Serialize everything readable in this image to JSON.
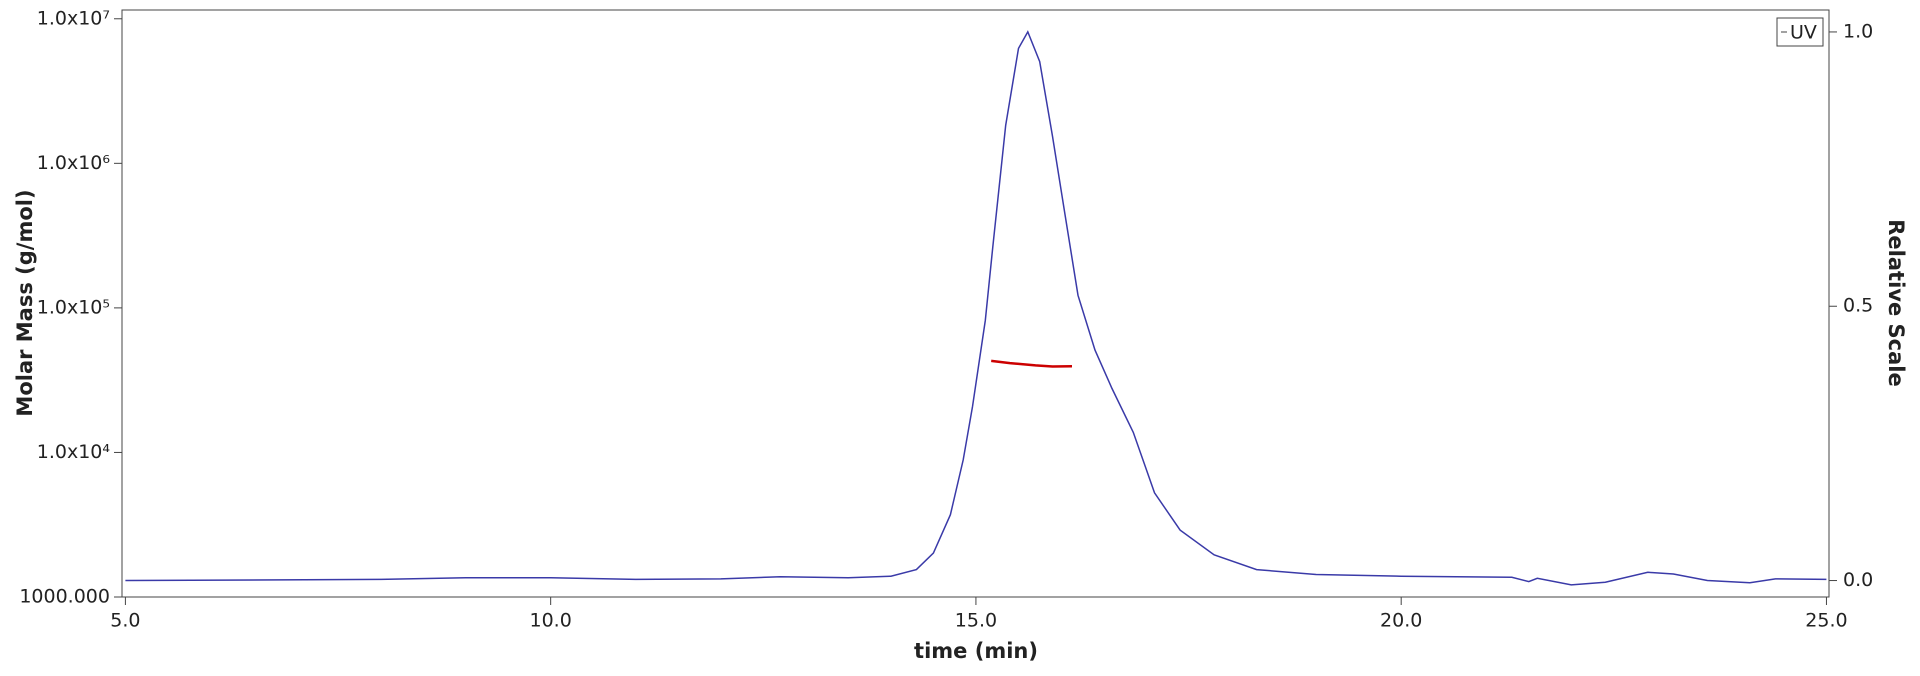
{
  "chart_data": {
    "type": "line",
    "xlabel": "time (min)",
    "ylabel": "Molar Mass (g/mol)",
    "y2label": "Relative Scale",
    "xlim": [
      4.96,
      25.03
    ],
    "xticks": [
      {
        "value": 5,
        "label": "5.0"
      },
      {
        "value": 10,
        "label": "10.0"
      },
      {
        "value": 15,
        "label": "15.0"
      },
      {
        "value": 20,
        "label": "20.0"
      },
      {
        "value": 25,
        "label": "25.0"
      }
    ],
    "ylim": [
      1000,
      11500000
    ],
    "yscale": "log",
    "yticks": [
      {
        "value": 10000000,
        "label": "1.0x10⁷"
      },
      {
        "value": 1000000,
        "label": "1.0x10⁶"
      },
      {
        "value": 100000,
        "label": "1.0x10⁵"
      },
      {
        "value": 10000,
        "label": "1.0x10⁴"
      },
      {
        "value": 1000,
        "label": "1000.000"
      }
    ],
    "y2lim": [
      -0.03,
      1.04
    ],
    "y2ticks": [
      {
        "value": 0,
        "label": "0.0"
      },
      {
        "value": 0.5,
        "label": "0.5"
      },
      {
        "value": 1,
        "label": "1.0"
      }
    ],
    "legend": "upper right",
    "series": [
      {
        "name": "UV",
        "color": "#3a3aa8",
        "axis": "y2",
        "x": [
          5.0,
          8.0,
          9.0,
          10.0,
          11.0,
          12.0,
          12.7,
          13.5,
          14.0,
          14.3,
          14.5,
          14.7,
          14.85,
          14.96,
          15.11,
          15.2,
          15.35,
          15.5,
          15.61,
          15.75,
          15.9,
          16.05,
          16.2,
          16.4,
          16.6,
          16.85,
          17.1,
          17.4,
          17.8,
          18.3,
          19.0,
          20.0,
          21.3,
          21.5,
          21.6,
          22.0,
          22.4,
          22.9,
          23.2,
          23.6,
          24.1,
          24.4,
          25.0
        ],
        "values": [
          0.0,
          0.002,
          0.005,
          0.005,
          0.002,
          0.003,
          0.007,
          0.005,
          0.008,
          0.02,
          0.05,
          0.12,
          0.22,
          0.317,
          0.474,
          0.61,
          0.83,
          0.97,
          1.0,
          0.946,
          0.81,
          0.665,
          0.52,
          0.42,
          0.35,
          0.27,
          0.16,
          0.092,
          0.047,
          0.02,
          0.011,
          0.008,
          0.006,
          -0.002,
          0.004,
          -0.008,
          -0.003,
          0.015,
          0.012,
          0.0,
          -0.004,
          0.003,
          0.002
        ]
      },
      {
        "color": "#cc0000",
        "axis": "y",
        "x": [
          15.18,
          15.4,
          15.7,
          15.9,
          16.13
        ],
        "values": [
          43000,
          41500,
          40000,
          39300,
          39500
        ]
      }
    ]
  }
}
